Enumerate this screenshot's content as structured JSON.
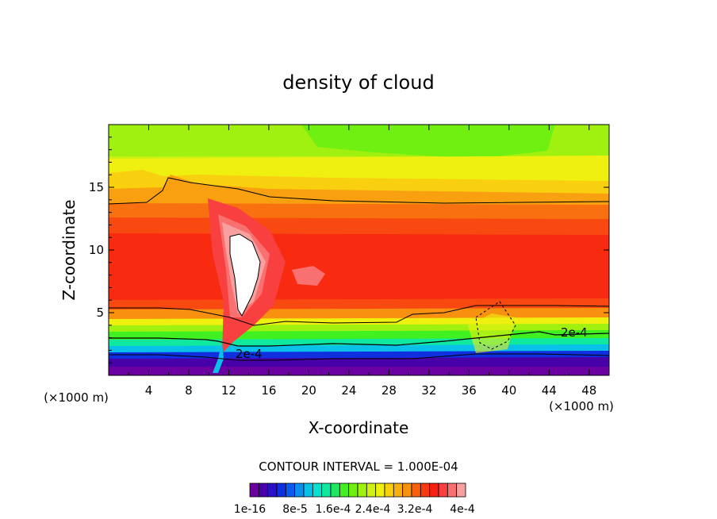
{
  "chart_data": {
    "type": "heatmap",
    "title": "density of cloud",
    "xlabel": "X-coordinate",
    "ylabel": "Z-coordinate",
    "x_unit_left": "(×1000 m)",
    "x_unit_right": "(×1000 m)",
    "xlim": [
      0,
      50
    ],
    "ylim": [
      0,
      20
    ],
    "x_ticks": [
      4,
      8,
      12,
      16,
      20,
      24,
      28,
      32,
      36,
      40,
      44,
      48
    ],
    "y_ticks": [
      5,
      10,
      15
    ],
    "contour_interval_text": "CONTOUR INTERVAL = 1.000E-04",
    "contour_labels": [
      {
        "text": "2e-4",
        "x": 14.0,
        "z": 1.4
      },
      {
        "text": "2e-4",
        "x": 46.5,
        "z": 3.1
      }
    ],
    "colorbar": {
      "labels": [
        "1e-16",
        "8e-5",
        "1.6e-4",
        "2.4e-4",
        "3.2e-4",
        "4e-4"
      ],
      "colors": [
        "#6a00a0",
        "#4800a8",
        "#2a10c8",
        "#1030e0",
        "#0a5af0",
        "#0a90f0",
        "#08c0e8",
        "#08e0d0",
        "#10e8a0",
        "#20e860",
        "#40f020",
        "#70f010",
        "#a0f010",
        "#d0f010",
        "#f0f010",
        "#f8d010",
        "#f8b010",
        "#f89010",
        "#f86010",
        "#f83a10",
        "#f82010",
        "#f84040",
        "#f87070",
        "#f8a0a0"
      ]
    }
  }
}
